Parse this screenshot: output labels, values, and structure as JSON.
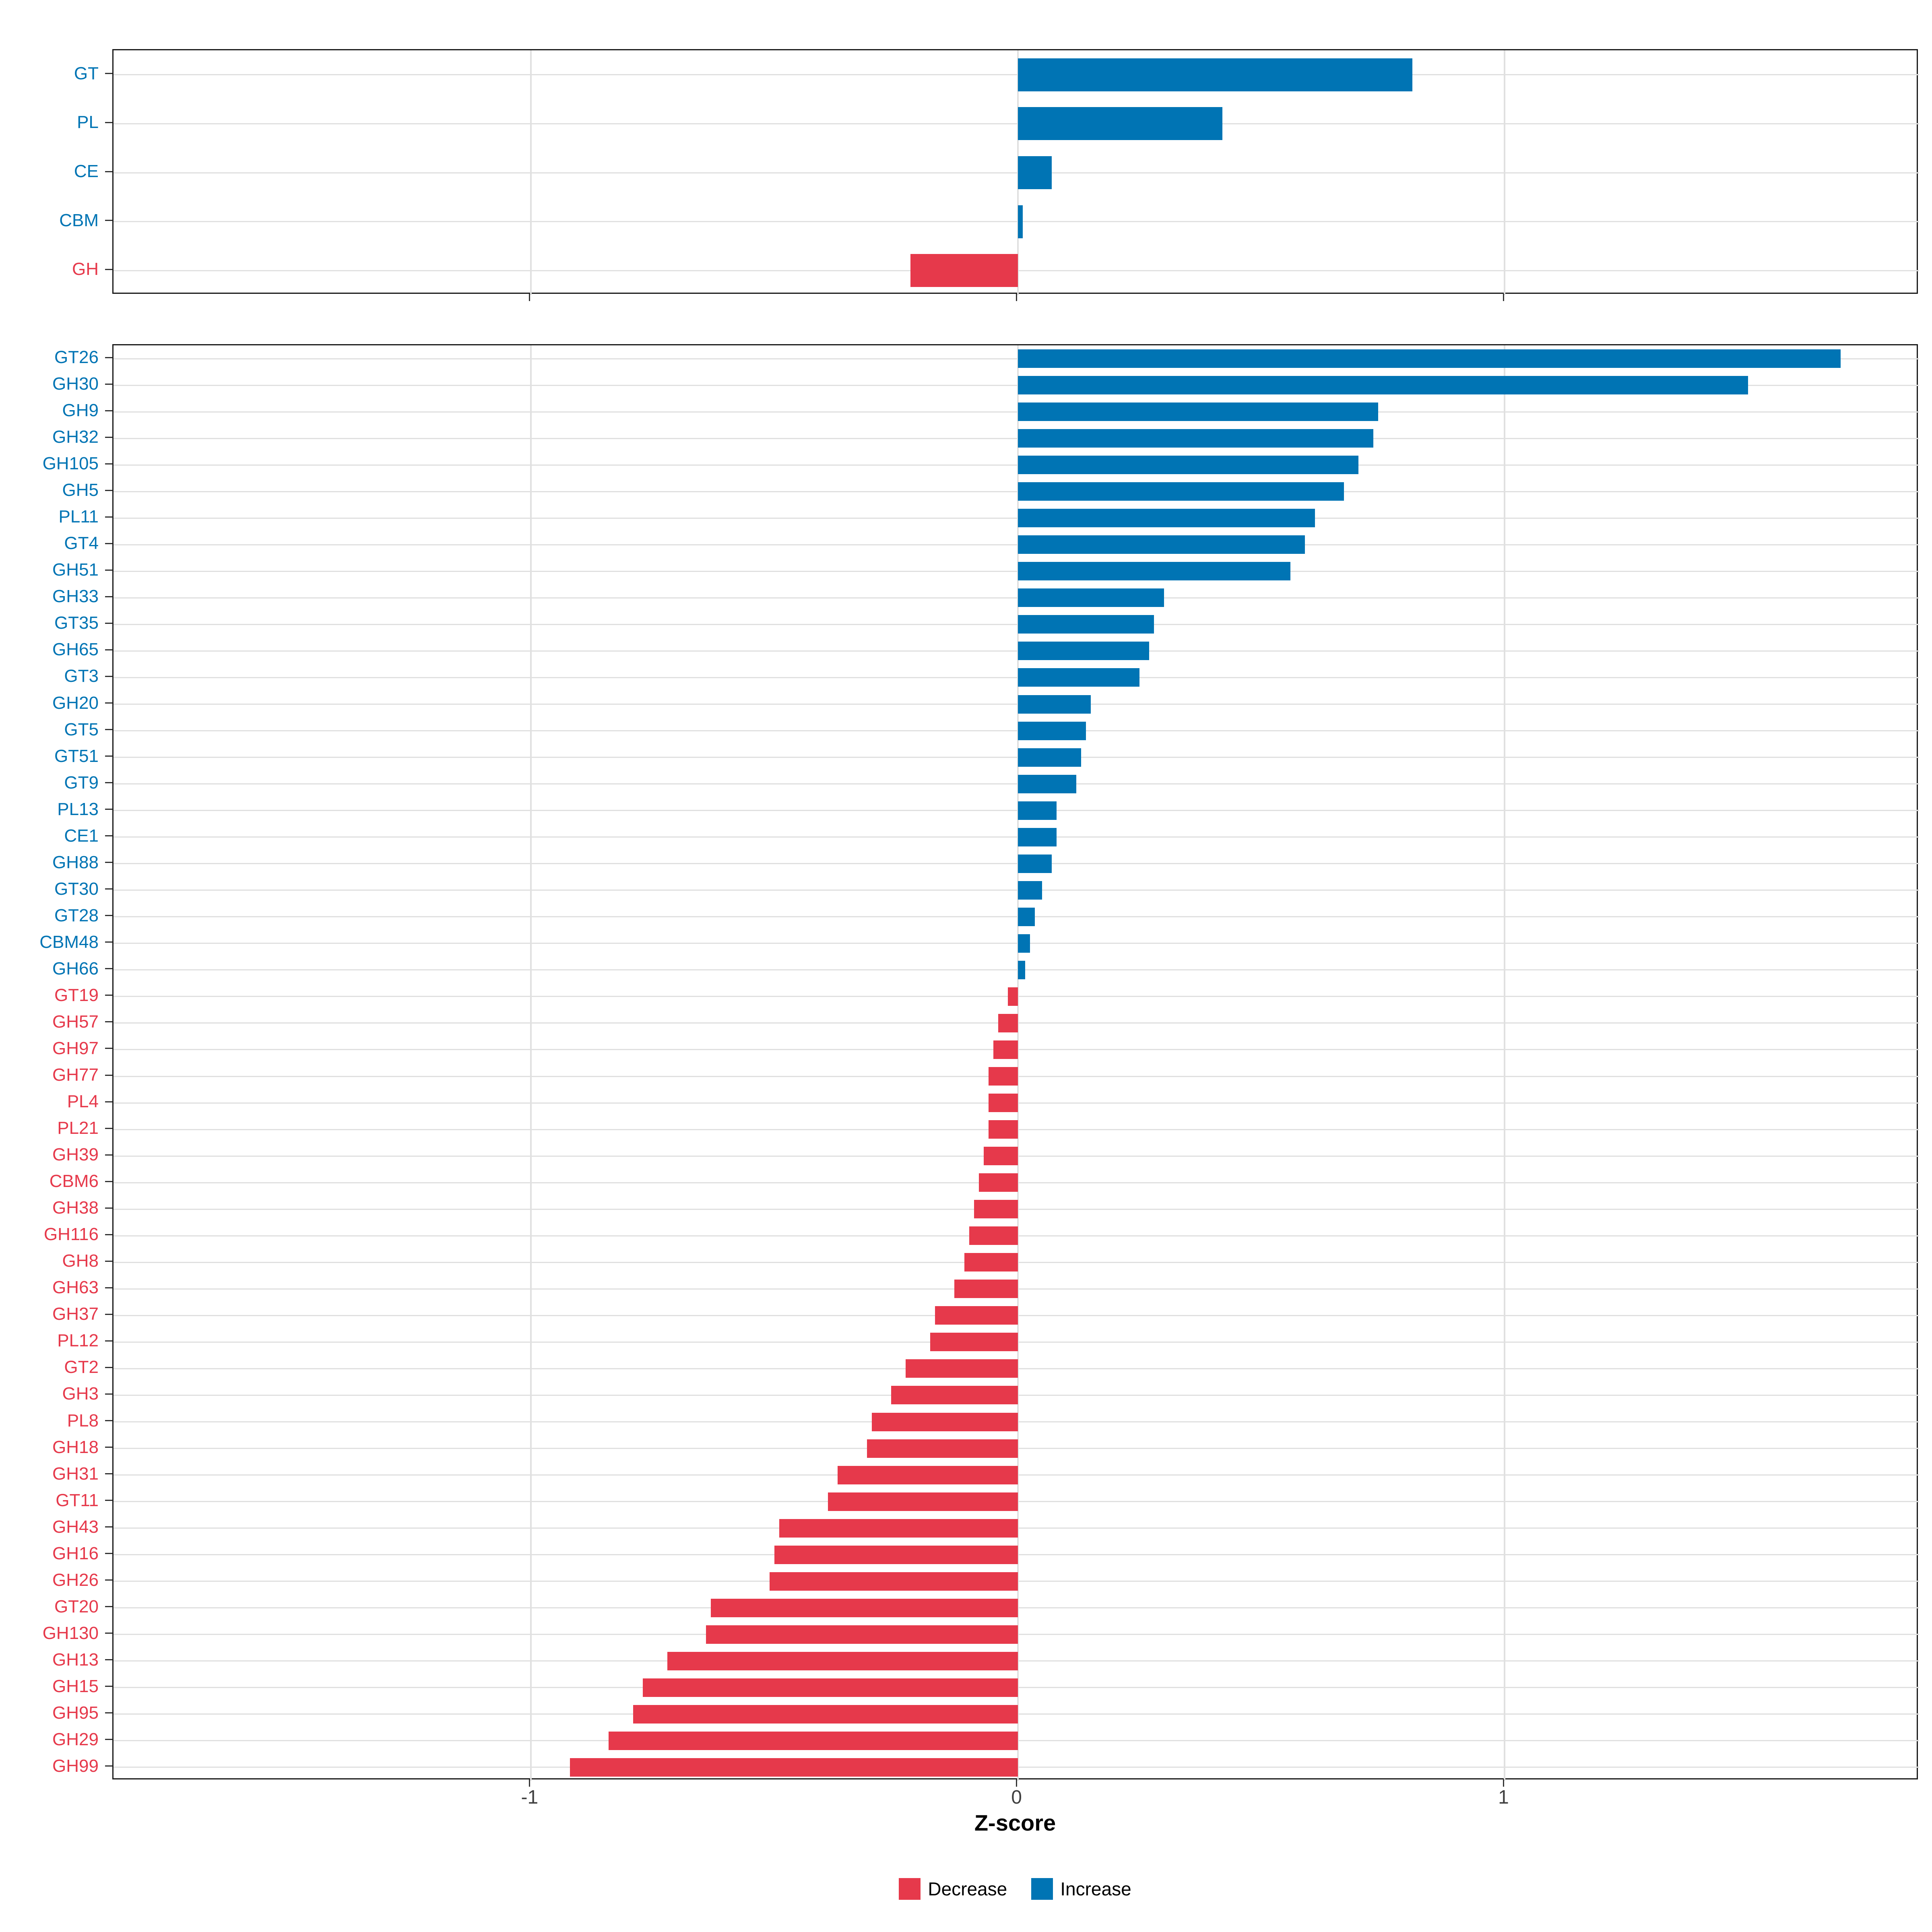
{
  "axis": {
    "label": "Z-score",
    "ticks": [
      "-1",
      "0",
      "1"
    ],
    "tick_values": [
      -1,
      0,
      1
    ],
    "xmin": -1.857,
    "xmax": 1.851
  },
  "colors": {
    "increase": "#0074B4",
    "decrease": "#E6394B",
    "grid": "#E0E0E0",
    "panel_border": "#1A1A1A",
    "tick": "#333333",
    "tick_label": "#404040"
  },
  "legend": {
    "position": "bottom",
    "items": [
      {
        "label": "Decrease",
        "color_key": "decrease"
      },
      {
        "label": "Increase",
        "color_key": "increase"
      }
    ]
  },
  "chart_data": [
    {
      "type": "bar",
      "orientation": "horizontal",
      "title": "",
      "xlabel": "Z-score",
      "ylabel": "",
      "xlim": [
        -1.857,
        1.851
      ],
      "grid": "on",
      "legend_position": "none",
      "categories": [
        "GT",
        "PL",
        "CE",
        "CBM",
        "GH"
      ],
      "values": [
        0.81,
        0.42,
        0.07,
        0.01,
        -0.22
      ]
    },
    {
      "type": "bar",
      "orientation": "horizontal",
      "title": "",
      "xlabel": "Z-score",
      "ylabel": "",
      "xlim": [
        -1.857,
        1.851
      ],
      "grid": "on",
      "legend_position": "bottom",
      "categories": [
        "GT26",
        "GH30",
        "GH9",
        "GH32",
        "GH105",
        "GH5",
        "PL11",
        "GT4",
        "GH51",
        "GH33",
        "GT35",
        "GH65",
        "GT3",
        "GH20",
        "GT5",
        "GT51",
        "GT9",
        "PL13",
        "CE1",
        "GH88",
        "GT30",
        "GT28",
        "CBM48",
        "GH66",
        "GT19",
        "GH57",
        "GH97",
        "GH77",
        "PL4",
        "PL21",
        "GH39",
        "CBM6",
        "GH38",
        "GH116",
        "GH8",
        "GH63",
        "GH37",
        "PL12",
        "GT2",
        "GH3",
        "PL8",
        "GH18",
        "GH31",
        "GT11",
        "GH43",
        "GH16",
        "GH26",
        "GT20",
        "GH130",
        "GH13",
        "GH15",
        "GH95",
        "GH29",
        "GH99"
      ],
      "values": [
        1.69,
        1.5,
        0.74,
        0.73,
        0.7,
        0.67,
        0.61,
        0.59,
        0.56,
        0.3,
        0.28,
        0.27,
        0.25,
        0.15,
        0.14,
        0.13,
        0.12,
        0.08,
        0.08,
        0.07,
        0.05,
        0.035,
        0.025,
        0.015,
        -0.02,
        -0.04,
        -0.05,
        -0.06,
        -0.06,
        -0.06,
        -0.07,
        -0.08,
        -0.09,
        -0.1,
        -0.11,
        -0.13,
        -0.17,
        -0.18,
        -0.23,
        -0.26,
        -0.3,
        -0.31,
        -0.37,
        -0.39,
        -0.49,
        -0.5,
        -0.51,
        -0.63,
        -0.64,
        -0.72,
        -0.77,
        -0.79,
        -0.84,
        -0.92
      ]
    }
  ]
}
